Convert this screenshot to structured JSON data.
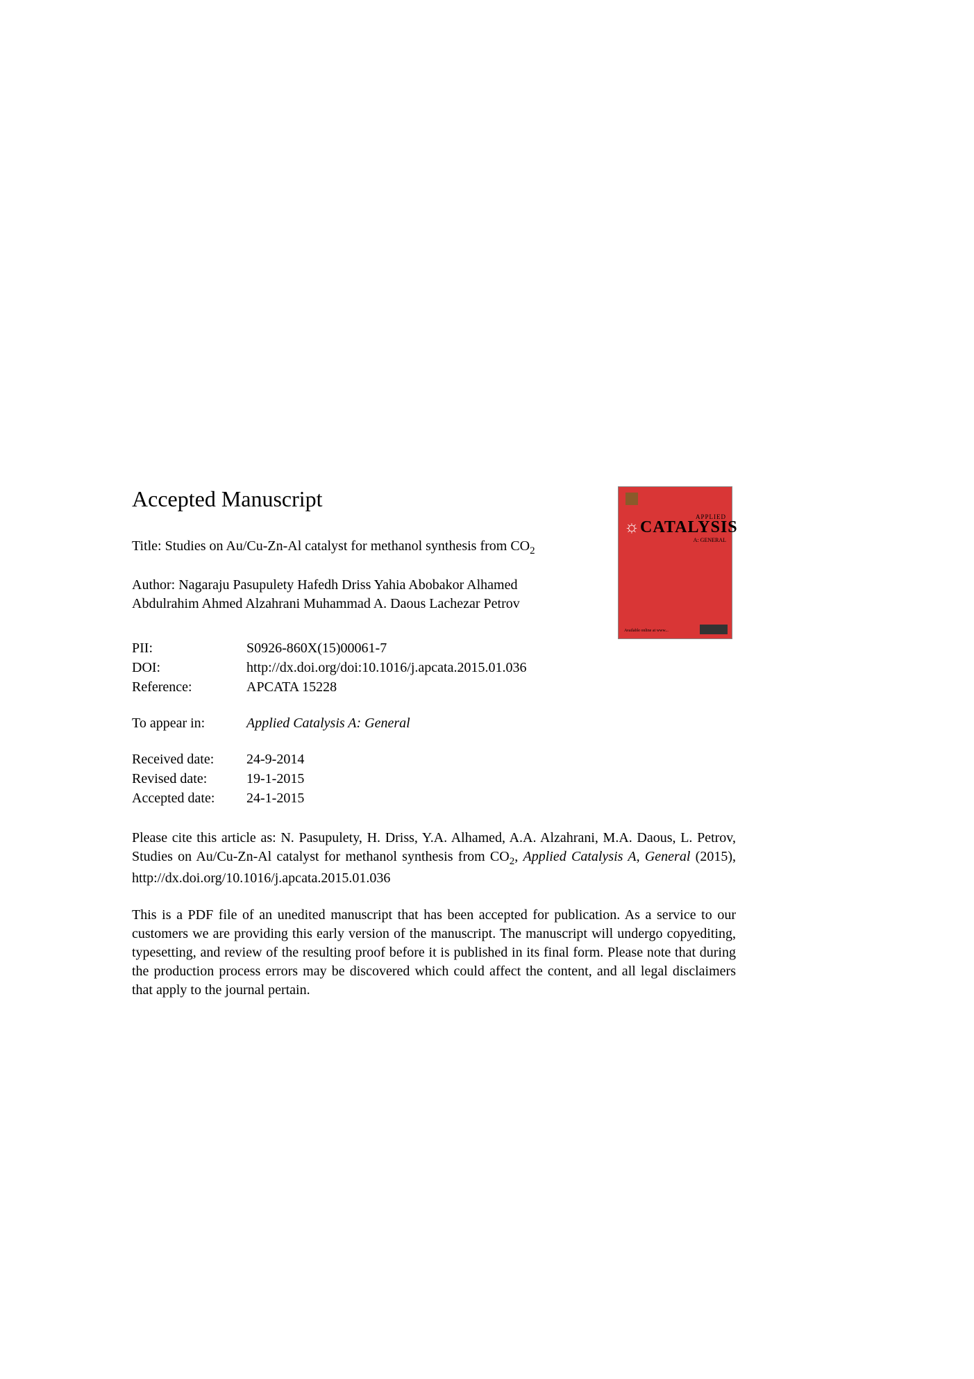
{
  "heading": "Accepted Manuscript",
  "title": {
    "label": "Title:",
    "text_part1": "Studies on Au/Cu-Zn-Al catalyst for methanol synthesis from CO",
    "subscript": "2"
  },
  "author": {
    "label": "Author:",
    "text": "Nagaraju Pasupulety Hafedh Driss Yahia Abobakor Alhamed Abdulrahim Ahmed Alzahrani Muhammad A. Daous Lachezar Petrov"
  },
  "cover": {
    "applied": "APPLIED",
    "catalysis_pre": "CATAL",
    "catalysis_y": "Y",
    "catalysis_post": "SIS",
    "general": "A: GENERAL",
    "footer": "Available online at www..."
  },
  "meta": {
    "pii": {
      "label": "PII:",
      "value": "S0926-860X(15)00061-7"
    },
    "doi": {
      "label": "DOI:",
      "value": "http://dx.doi.org/doi:10.1016/j.apcata.2015.01.036"
    },
    "reference": {
      "label": "Reference:",
      "value": "APCATA 15228"
    },
    "appear": {
      "label": "To appear in:",
      "value": "Applied Catalysis A: General"
    },
    "received": {
      "label": "Received date:",
      "value": "24-9-2014"
    },
    "revised": {
      "label": "Revised date:",
      "value": "19-1-2015"
    },
    "accepted": {
      "label": "Accepted date:",
      "value": "24-1-2015"
    }
  },
  "citation": {
    "prefix": "Please cite this article as: N. Pasupulety, H. Driss, Y.A. Alhamed, A.A. Alzahrani, M.A. Daous, L. Petrov, Studies on Au/Cu-Zn-Al catalyst for methanol synthesis from CO",
    "subscript": "2",
    "comma": ", ",
    "journal": "Applied Catalysis A, General",
    "suffix": " (2015), http://dx.doi.org/10.1016/j.apcata.2015.01.036"
  },
  "disclaimer": "This is a PDF file of an unedited manuscript that has been accepted for publication. As a service to our customers we are providing this early version of the manuscript. The manuscript will undergo copyediting, typesetting, and review of the resulting proof before it is published in its final form. Please note that during the production process errors may be discovered which could affect the content, and all legal disclaimers that apply to the journal pertain."
}
